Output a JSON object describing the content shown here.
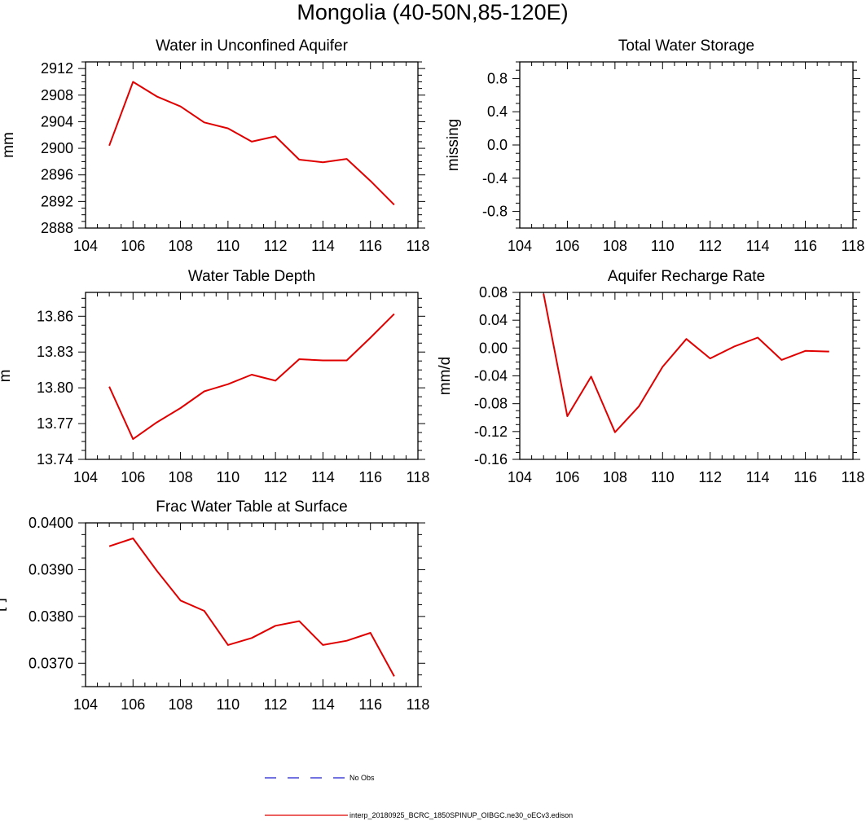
{
  "figure": {
    "title": "Mongolia (40-50N,85-120E)"
  },
  "legend": {
    "entries": [
      {
        "label": "No Obs",
        "color": "#1f1fd0",
        "style": "dashed"
      },
      {
        "label": "interp_20180925_BCRC_1850SPINUP_OIBGC.ne30_oECv3.edison",
        "color": "#e00000",
        "style": "solid"
      }
    ]
  },
  "chart_data": [
    {
      "type": "line",
      "title": "Water in Unconfined Aquifer",
      "xlabel": "",
      "ylabel": "mm",
      "xlim": [
        104,
        118
      ],
      "ylim": [
        2888,
        2913
      ],
      "xticks": [
        104,
        106,
        108,
        110,
        112,
        114,
        116,
        118
      ],
      "xtick_labels": [
        "104",
        "106",
        "108",
        "110",
        "112",
        "114",
        "116",
        "118"
      ],
      "yticks": [
        2888,
        2892,
        2896,
        2900,
        2904,
        2908,
        2912
      ],
      "ytick_labels": [
        "2888",
        "2892",
        "2896",
        "2900",
        "2904",
        "2908",
        "2912"
      ],
      "x": [
        105,
        106,
        107,
        108,
        109,
        110,
        111,
        112,
        113,
        114,
        115,
        116,
        117
      ],
      "series": [
        {
          "name": "interp_20180925_BCRC_1850SPINUP_OIBGC.ne30_oECv3.edison",
          "color": "#e00000",
          "values": [
            2900.4,
            2910.0,
            2907.8,
            2906.3,
            2903.9,
            2903.0,
            2901.0,
            2901.8,
            2898.3,
            2897.9,
            2898.4,
            2895.1,
            2891.5
          ]
        }
      ]
    },
    {
      "type": "line",
      "title": "Total Water Storage",
      "xlabel": "",
      "ylabel": "missing",
      "xlim": [
        104,
        118
      ],
      "ylim": [
        -1,
        1
      ],
      "xticks": [
        104,
        106,
        108,
        110,
        112,
        114,
        116,
        118
      ],
      "xtick_labels": [
        "104",
        "106",
        "108",
        "110",
        "112",
        "114",
        "116",
        "118"
      ],
      "yticks": [
        -0.8,
        -0.4,
        0.0,
        0.4,
        0.8
      ],
      "ytick_labels": [
        "-0.8",
        "-0.4",
        "0.0",
        "0.4",
        "0.8"
      ],
      "x": [],
      "series": []
    },
    {
      "type": "line",
      "title": "Water Table Depth",
      "xlabel": "",
      "ylabel": "m",
      "xlim": [
        104,
        118
      ],
      "ylim": [
        13.74,
        13.88
      ],
      "xticks": [
        104,
        106,
        108,
        110,
        112,
        114,
        116,
        118
      ],
      "xtick_labels": [
        "104",
        "106",
        "108",
        "110",
        "112",
        "114",
        "116",
        "118"
      ],
      "yticks": [
        13.74,
        13.77,
        13.8,
        13.83,
        13.86
      ],
      "ytick_labels": [
        "13.74",
        "13.77",
        "13.80",
        "13.83",
        "13.86"
      ],
      "x": [
        105,
        106,
        107,
        108,
        109,
        110,
        111,
        112,
        113,
        114,
        115,
        116,
        117
      ],
      "series": [
        {
          "name": "interp_20180925_BCRC_1850SPINUP_OIBGC.ne30_oECv3.edison",
          "color": "#e00000",
          "values": [
            13.801,
            13.757,
            13.771,
            13.783,
            13.797,
            13.803,
            13.811,
            13.806,
            13.824,
            13.823,
            13.823,
            13.842,
            13.862
          ]
        }
      ]
    },
    {
      "type": "line",
      "title": "Aquifer Recharge Rate",
      "xlabel": "",
      "ylabel": "mm/d",
      "xlim": [
        104,
        118
      ],
      "ylim": [
        -0.16,
        0.08
      ],
      "xticks": [
        104,
        106,
        108,
        110,
        112,
        114,
        116,
        118
      ],
      "xtick_labels": [
        "104",
        "106",
        "108",
        "110",
        "112",
        "114",
        "116",
        "118"
      ],
      "yticks": [
        -0.16,
        -0.12,
        -0.08,
        -0.04,
        0.0,
        0.04,
        0.08
      ],
      "ytick_labels": [
        "-0.16",
        "-0.12",
        "-0.08",
        "-0.04",
        "0.00",
        "0.04",
        "0.08"
      ],
      "x": [
        105,
        106,
        107,
        108,
        109,
        110,
        111,
        112,
        113,
        114,
        115,
        116,
        117
      ],
      "series": [
        {
          "name": "interp_20180925_BCRC_1850SPINUP_OIBGC.ne30_oECv3.edison",
          "color": "#e00000",
          "values": [
            0.078,
            -0.098,
            -0.041,
            -0.121,
            -0.084,
            -0.027,
            0.013,
            -0.015,
            0.002,
            0.015,
            -0.017,
            -0.004,
            -0.005
          ]
        }
      ]
    },
    {
      "type": "line",
      "title": "Frac Water Table at Surface",
      "xlabel": "",
      "ylabel": "[-]",
      "xlim": [
        104,
        118
      ],
      "ylim": [
        0.0365,
        0.04
      ],
      "xticks": [
        104,
        106,
        108,
        110,
        112,
        114,
        116,
        118
      ],
      "xtick_labels": [
        "104",
        "106",
        "108",
        "110",
        "112",
        "114",
        "116",
        "118"
      ],
      "yticks": [
        0.037,
        0.038,
        0.039,
        0.04
      ],
      "ytick_labels": [
        "0.0370",
        "0.0380",
        "0.0390",
        "0.0400"
      ],
      "x": [
        105,
        106,
        107,
        108,
        109,
        110,
        111,
        112,
        113,
        114,
        115,
        116,
        117
      ],
      "series": [
        {
          "name": "interp_20180925_BCRC_1850SPINUP_OIBGC.ne30_oECv3.edison",
          "color": "#e00000",
          "values": [
            0.0395,
            0.03967,
            0.03898,
            0.03834,
            0.03812,
            0.03739,
            0.03754,
            0.0378,
            0.0379,
            0.03739,
            0.03748,
            0.03765,
            0.03672
          ]
        }
      ]
    }
  ]
}
